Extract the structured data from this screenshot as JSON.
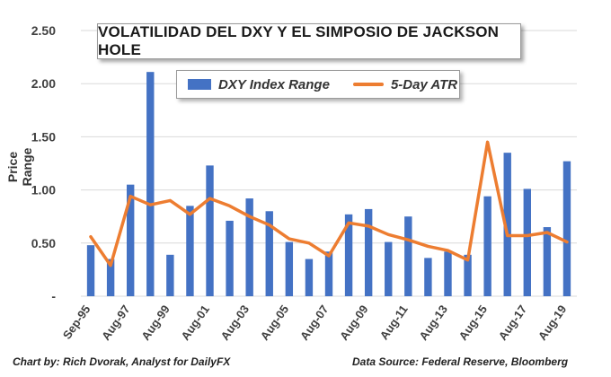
{
  "chart_data": {
    "type": "bar",
    "title": "VOLATILIDAD DEL DXY Y EL SIMPOSIO DE JACKSON HOLE",
    "ylabel": "Price Range",
    "xlabel": "",
    "ylim": [
      0,
      2.5
    ],
    "yticks": [
      "-",
      "0.50",
      "1.00",
      "1.50",
      "2.00",
      "2.50"
    ],
    "ytick_values": [
      0,
      0.5,
      1.0,
      1.5,
      2.0,
      2.5
    ],
    "categories": [
      "Sep-95",
      "Aug-96",
      "Aug-97",
      "Aug-98",
      "Aug-99",
      "Aug-00",
      "Aug-01",
      "Aug-02",
      "Aug-03",
      "Aug-04",
      "Aug-05",
      "Aug-06",
      "Aug-07",
      "Aug-08",
      "Aug-09",
      "Aug-10",
      "Aug-11",
      "Aug-12",
      "Aug-13",
      "Aug-14",
      "Aug-15",
      "Aug-16",
      "Aug-17",
      "Aug-18",
      "Aug-19"
    ],
    "xtick_labels": [
      "Sep-95",
      "Aug-97",
      "Aug-99",
      "Aug-01",
      "Aug-03",
      "Aug-05",
      "Aug-07",
      "Aug-09",
      "Aug-11",
      "Aug-13",
      "Aug-15",
      "Aug-17",
      "Aug-19"
    ],
    "xtick_indices": [
      0,
      2,
      4,
      6,
      8,
      10,
      12,
      14,
      16,
      18,
      20,
      22,
      24
    ],
    "series": [
      {
        "name": "DXY Index Range",
        "kind": "bar",
        "color": "#4472C4",
        "values": [
          0.48,
          0.35,
          1.05,
          2.11,
          0.39,
          0.85,
          1.23,
          0.71,
          0.92,
          0.8,
          0.51,
          0.35,
          0.42,
          0.77,
          0.82,
          0.51,
          0.75,
          0.36,
          0.42,
          0.39,
          0.94,
          1.35,
          1.01,
          0.65,
          1.27
        ]
      },
      {
        "name": "5-Day ATR",
        "kind": "line",
        "color": "#ED7D31",
        "values": [
          0.56,
          0.29,
          0.94,
          0.86,
          0.9,
          0.77,
          0.92,
          0.85,
          0.75,
          0.67,
          0.54,
          0.5,
          0.38,
          0.69,
          0.66,
          0.58,
          0.53,
          0.47,
          0.43,
          0.34,
          1.45,
          0.57,
          0.57,
          0.6,
          0.51
        ]
      }
    ],
    "grid": true,
    "legend_position": "top"
  },
  "footer": {
    "credit": "Chart by: Rich Dvorak, Analyst for DailyFX",
    "source": "Data Source: Federal Reserve, Bloomberg"
  }
}
